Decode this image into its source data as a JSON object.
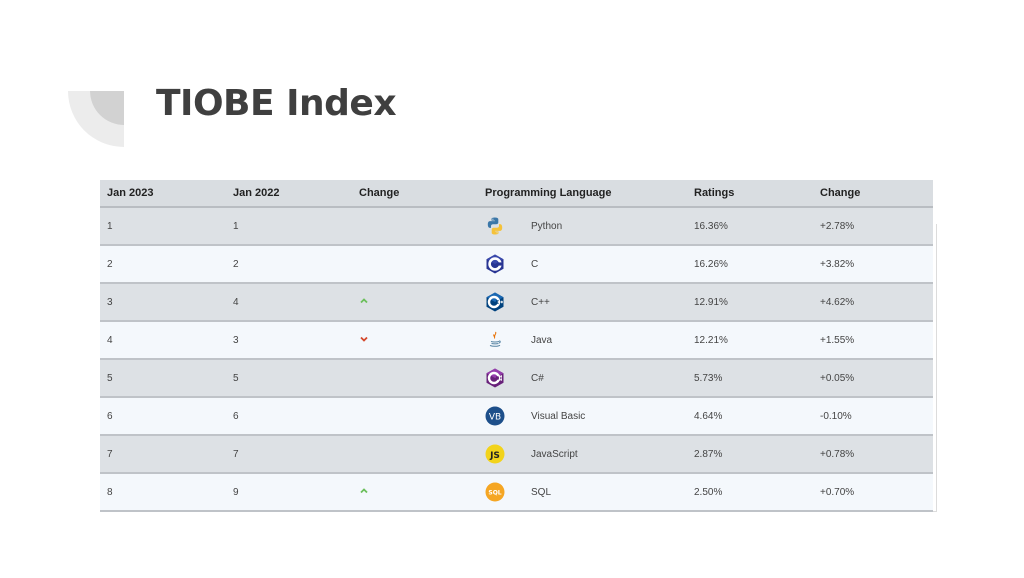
{
  "page": {
    "title": "TIOBE Index"
  },
  "table": {
    "headers": [
      "Jan 2023",
      "Jan 2022",
      "Change",
      "Programming Language",
      "Ratings",
      "Change"
    ],
    "rows": [
      {
        "jan2023": "1",
        "jan2022": "1",
        "trend": "",
        "icon": "python-logo-icon",
        "language": "Python",
        "rating": "16.36%",
        "change": "+2.78%"
      },
      {
        "jan2023": "2",
        "jan2022": "2",
        "trend": "",
        "icon": "c-logo-icon",
        "language": "C",
        "rating": "16.26%",
        "change": "+3.82%"
      },
      {
        "jan2023": "3",
        "jan2022": "4",
        "trend": "up",
        "icon": "cpp-logo-icon",
        "language": "C++",
        "rating": "12.91%",
        "change": "+4.62%"
      },
      {
        "jan2023": "4",
        "jan2022": "3",
        "trend": "down",
        "icon": "java-logo-icon",
        "language": "Java",
        "rating": "12.21%",
        "change": "+1.55%"
      },
      {
        "jan2023": "5",
        "jan2022": "5",
        "trend": "",
        "icon": "csharp-logo-icon",
        "language": "C#",
        "rating": "5.73%",
        "change": "+0.05%"
      },
      {
        "jan2023": "6",
        "jan2022": "6",
        "trend": "",
        "icon": "visual-basic-logo-icon",
        "language": "Visual Basic",
        "rating": "4.64%",
        "change": "-0.10%"
      },
      {
        "jan2023": "7",
        "jan2022": "7",
        "trend": "",
        "icon": "javascript-logo-icon",
        "language": "JavaScript",
        "rating": "2.87%",
        "change": "+0.78%"
      },
      {
        "jan2023": "8",
        "jan2022": "9",
        "trend": "up",
        "icon": "sql-logo-icon",
        "language": "SQL",
        "rating": "2.50%",
        "change": "+0.70%"
      }
    ]
  },
  "colors": {
    "up": "#6bbf5a",
    "down": "#d4472a",
    "odd_row": "#dde1e5",
    "even_row": "#f4f8fc"
  }
}
